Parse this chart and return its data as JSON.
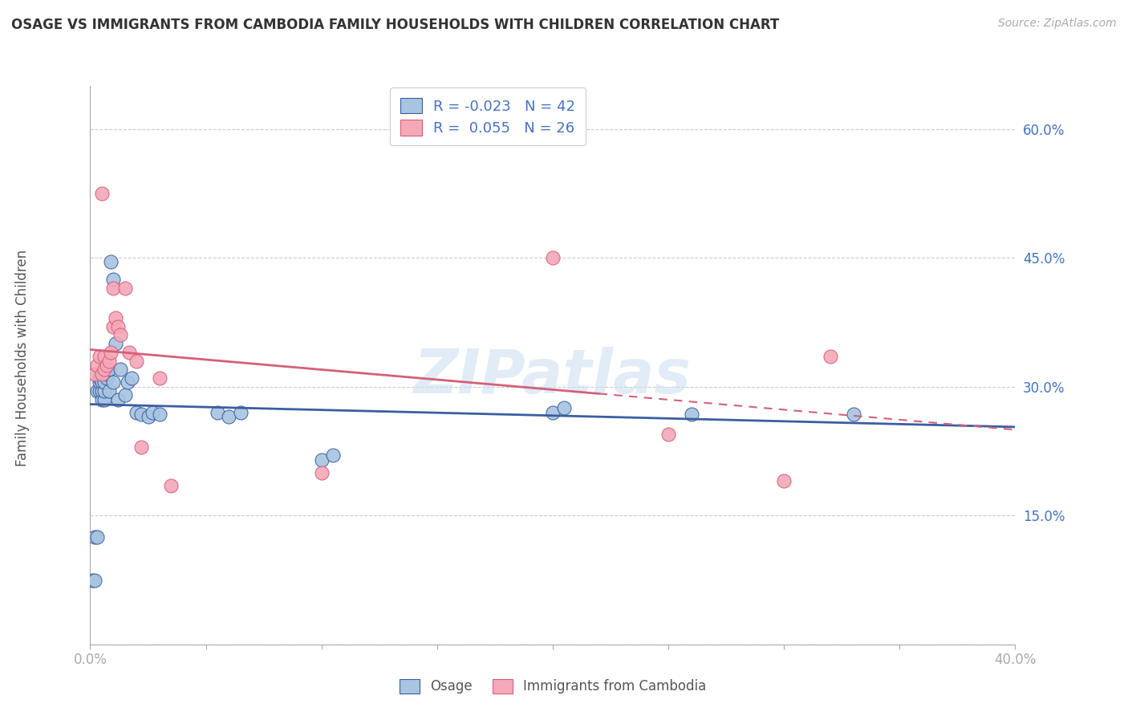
{
  "title": "OSAGE VS IMMIGRANTS FROM CAMBODIA FAMILY HOUSEHOLDS WITH CHILDREN CORRELATION CHART",
  "source": "Source: ZipAtlas.com",
  "ylabel": "Family Households with Children",
  "xlim": [
    0.0,
    0.4
  ],
  "ylim": [
    0.0,
    0.65
  ],
  "yticks": [
    0.0,
    0.15,
    0.3,
    0.45,
    0.6
  ],
  "ytick_labels": [
    "",
    "15.0%",
    "30.0%",
    "45.0%",
    "60.0%"
  ],
  "xtick_labels": [
    "0.0%",
    "",
    "",
    "",
    "",
    "",
    "",
    "",
    "40.0%"
  ],
  "legend_labels": [
    "Osage",
    "Immigrants from Cambodia"
  ],
  "R_osage": -0.023,
  "N_osage": 42,
  "R_cambodia": 0.055,
  "N_cambodia": 26,
  "osage_color": "#a8c4e0",
  "cambodia_color": "#f4a8b8",
  "trend_osage_color": "#3a5fa0",
  "trend_cambodia_color": "#d4607a",
  "watermark": "ZIPatlas",
  "osage_x": [
    0.001,
    0.002,
    0.002,
    0.003,
    0.003,
    0.004,
    0.004,
    0.004,
    0.005,
    0.005,
    0.005,
    0.005,
    0.006,
    0.006,
    0.006,
    0.007,
    0.007,
    0.008,
    0.008,
    0.009,
    0.01,
    0.01,
    0.011,
    0.012,
    0.013,
    0.015,
    0.016,
    0.018,
    0.02,
    0.022,
    0.025,
    0.027,
    0.03,
    0.055,
    0.06,
    0.065,
    0.1,
    0.105,
    0.2,
    0.205,
    0.26,
    0.33
  ],
  "osage_y": [
    0.075,
    0.075,
    0.125,
    0.125,
    0.295,
    0.295,
    0.305,
    0.31,
    0.285,
    0.295,
    0.305,
    0.315,
    0.285,
    0.295,
    0.305,
    0.31,
    0.315,
    0.295,
    0.32,
    0.445,
    0.425,
    0.305,
    0.35,
    0.285,
    0.32,
    0.29,
    0.305,
    0.31,
    0.27,
    0.268,
    0.265,
    0.27,
    0.268,
    0.27,
    0.265,
    0.27,
    0.215,
    0.22,
    0.27,
    0.275,
    0.268,
    0.268
  ],
  "cambodia_x": [
    0.002,
    0.003,
    0.004,
    0.005,
    0.005,
    0.006,
    0.006,
    0.007,
    0.008,
    0.009,
    0.01,
    0.01,
    0.011,
    0.012,
    0.013,
    0.015,
    0.017,
    0.02,
    0.022,
    0.03,
    0.035,
    0.1,
    0.2,
    0.25,
    0.3,
    0.32
  ],
  "cambodia_y": [
    0.315,
    0.325,
    0.335,
    0.525,
    0.315,
    0.32,
    0.335,
    0.325,
    0.33,
    0.34,
    0.37,
    0.415,
    0.38,
    0.37,
    0.36,
    0.415,
    0.34,
    0.33,
    0.23,
    0.31,
    0.185,
    0.2,
    0.45,
    0.245,
    0.19,
    0.335
  ]
}
